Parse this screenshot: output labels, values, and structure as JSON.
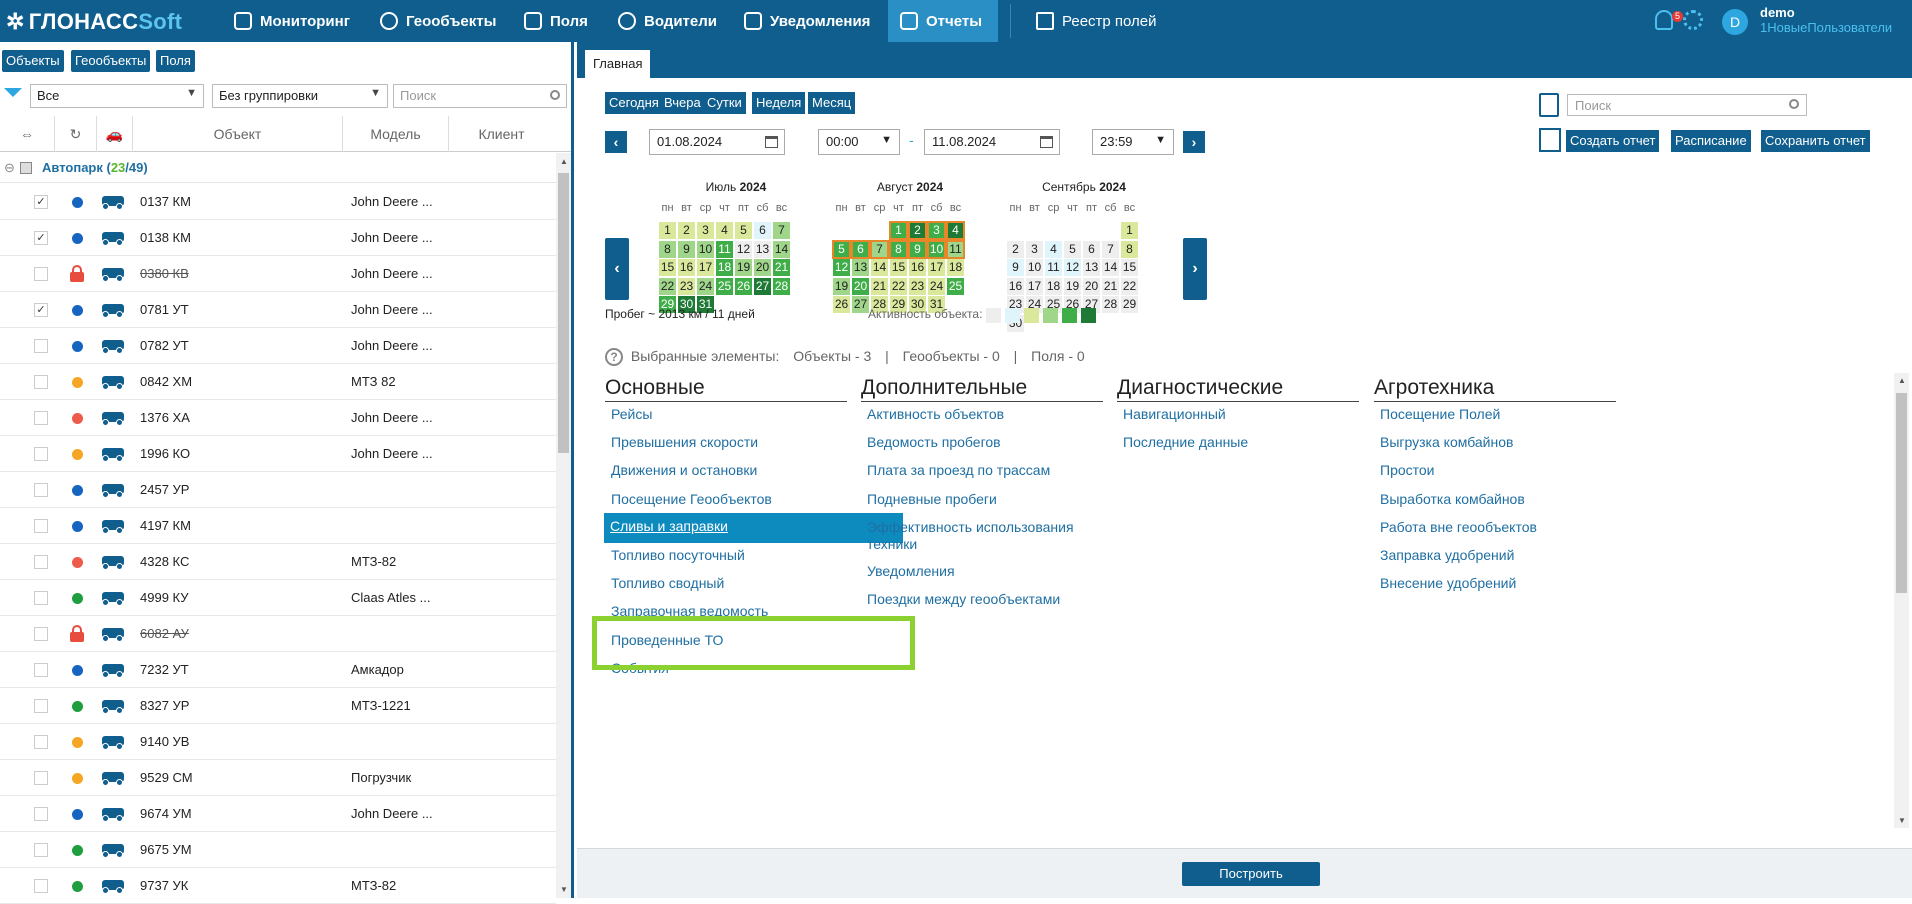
{
  "header": {
    "logo_main": "ГЛОНАСС",
    "logo_soft": "Soft",
    "nav": [
      {
        "label": "Мониторинг"
      },
      {
        "label": "Геообъекты"
      },
      {
        "label": "Поля"
      },
      {
        "label": "Водители"
      },
      {
        "label": "Уведомления"
      },
      {
        "label": "Отчеты"
      }
    ],
    "registry": "Реестр полей",
    "notifications_count": "5",
    "avatar_letter": "D",
    "user_name": "demo",
    "user_sub": "1НовыеПользователи"
  },
  "left": {
    "tabs": [
      "Объекты",
      "Геообъекты",
      "Поля"
    ],
    "filter_value": "Все",
    "grouping_value": "Без группировки",
    "search_placeholder": "Поиск",
    "columns": {
      "object": "Объект",
      "model": "Модель",
      "client": "Клиент"
    },
    "group": {
      "name": "Автопарк",
      "open": " (",
      "selected": "23",
      "slash": "/",
      "total": "49",
      "close": ")"
    },
    "rows": [
      {
        "name": "0137 КМ",
        "model": "John Deere ...",
        "checked": true,
        "status": "#1565c0",
        "locked": false,
        "strike": false
      },
      {
        "name": "0138 КМ",
        "model": "John Deere ...",
        "checked": true,
        "status": "#1565c0",
        "locked": false,
        "strike": false
      },
      {
        "name": "0380 КВ",
        "model": "John Deere ...",
        "checked": false,
        "status": "",
        "locked": true,
        "strike": true
      },
      {
        "name": "0781 УТ",
        "model": "John Deere ...",
        "checked": true,
        "status": "#1565c0",
        "locked": false,
        "strike": false
      },
      {
        "name": "0782 УТ",
        "model": "John Deere ...",
        "checked": false,
        "status": "#1565c0",
        "locked": false,
        "strike": false
      },
      {
        "name": "0842 ХМ",
        "model": "МТЗ 82",
        "checked": false,
        "status": "#f5a623",
        "locked": false,
        "strike": false
      },
      {
        "name": "1376 ХА",
        "model": "John Deere ...",
        "checked": false,
        "status": "#ef5b4b",
        "locked": false,
        "strike": false
      },
      {
        "name": "1996 КО",
        "model": "John Deere ...",
        "checked": false,
        "status": "#f5a623",
        "locked": false,
        "strike": false
      },
      {
        "name": "2457 УР",
        "model": "",
        "checked": false,
        "status": "#1565c0",
        "locked": false,
        "strike": false
      },
      {
        "name": "4197 КМ",
        "model": "",
        "checked": false,
        "status": "#1565c0",
        "locked": false,
        "strike": false
      },
      {
        "name": "4328 КС",
        "model": "МТЗ-82",
        "checked": false,
        "status": "#ef5b4b",
        "locked": false,
        "strike": false
      },
      {
        "name": "4999 КУ",
        "model": "Claas Atles ...",
        "checked": false,
        "status": "#1e9e3e",
        "locked": false,
        "strike": false
      },
      {
        "name": "6082 АУ",
        "model": "",
        "checked": false,
        "status": "",
        "locked": true,
        "strike": true
      },
      {
        "name": "7232 УТ",
        "model": "Амкадор",
        "checked": false,
        "status": "#1565c0",
        "locked": false,
        "strike": false
      },
      {
        "name": "8327 УР",
        "model": "МТЗ-1221",
        "checked": false,
        "status": "#1e9e3e",
        "locked": false,
        "strike": false
      },
      {
        "name": "9140 УВ",
        "model": "",
        "checked": false,
        "status": "#f5a623",
        "locked": false,
        "strike": false
      },
      {
        "name": "9529 СМ",
        "model": "Погрузчик",
        "checked": false,
        "status": "#f5a623",
        "locked": false,
        "strike": false
      },
      {
        "name": "9674 УМ",
        "model": "John Deere ...",
        "checked": false,
        "status": "#1565c0",
        "locked": false,
        "strike": false
      },
      {
        "name": "9675 УМ",
        "model": "",
        "checked": false,
        "status": "#1e9e3e",
        "locked": false,
        "strike": false
      },
      {
        "name": "9737 УК",
        "model": "МТЗ-82",
        "checked": false,
        "status": "#1e9e3e",
        "locked": false,
        "strike": false
      }
    ]
  },
  "main": {
    "tab": "Главная",
    "quick": [
      "Сегодня",
      "Вчера",
      "Сутки",
      "Неделя",
      "Месяц"
    ],
    "date_from": "01.08.2024",
    "time_from": "00:00",
    "dash": "-",
    "date_to": "11.08.2024",
    "time_to": "23:59",
    "search_placeholder": "Поиск",
    "actions": [
      "Создать отчет",
      "Расписание",
      "Сохранить отчет"
    ],
    "weekdays": [
      "пн",
      "вт",
      "ср",
      "чт",
      "пт",
      "сб",
      "вс"
    ],
    "months": [
      {
        "name": "Июль",
        "year": "2024",
        "start": 0,
        "days": 31
      },
      {
        "name": "Август",
        "year": "2024",
        "start": 3,
        "days": 31
      },
      {
        "name": "Сентябрь",
        "year": "2024",
        "start": 6,
        "days": 30
      }
    ],
    "mileage": "Пробег ~ 2013 км / 11 дней",
    "activity_label": "Активность объекта:",
    "activity_colors": [
      "#eeeeee",
      "#e0f4fb",
      "#d9e89a",
      "#9fd68a",
      "#3fae49",
      "#1e7a34"
    ],
    "selected_label": "Выбранные элементы:",
    "selected_objects": "Объекты - 3",
    "selected_geo": "Геообъекты - 0",
    "selected_fields": "Поля - 0",
    "sep": "|",
    "categories": [
      {
        "title": "Основные",
        "items": [
          "Рейсы",
          "Превышения скорости",
          "Движения и остановки",
          "Посещение Геообъектов",
          "Сливы и заправки",
          "Топливо посуточный",
          "Топливо сводный",
          "Заправочная ведомость",
          "Проведенные ТО",
          "События"
        ]
      },
      {
        "title": "Дополнительные",
        "items": [
          "Активность объектов",
          "Ведомость пробегов",
          "Плата за проезд по трассам",
          "Подневные пробеги",
          "Эффективность использования техники",
          "Уведомления",
          "Поездки между геообъектами"
        ]
      },
      {
        "title": "Диагностические",
        "items": [
          "Навигационный",
          "Последние данные"
        ]
      },
      {
        "title": "Агротехника",
        "items": [
          "Посещение Полей",
          "Выгрузка комбайнов",
          "Простои",
          "Выработка комбайнов",
          "Работа вне геообъектов",
          "Заправка удобрений",
          "Внесение удобрений"
        ]
      }
    ],
    "build_label": "Построить"
  }
}
